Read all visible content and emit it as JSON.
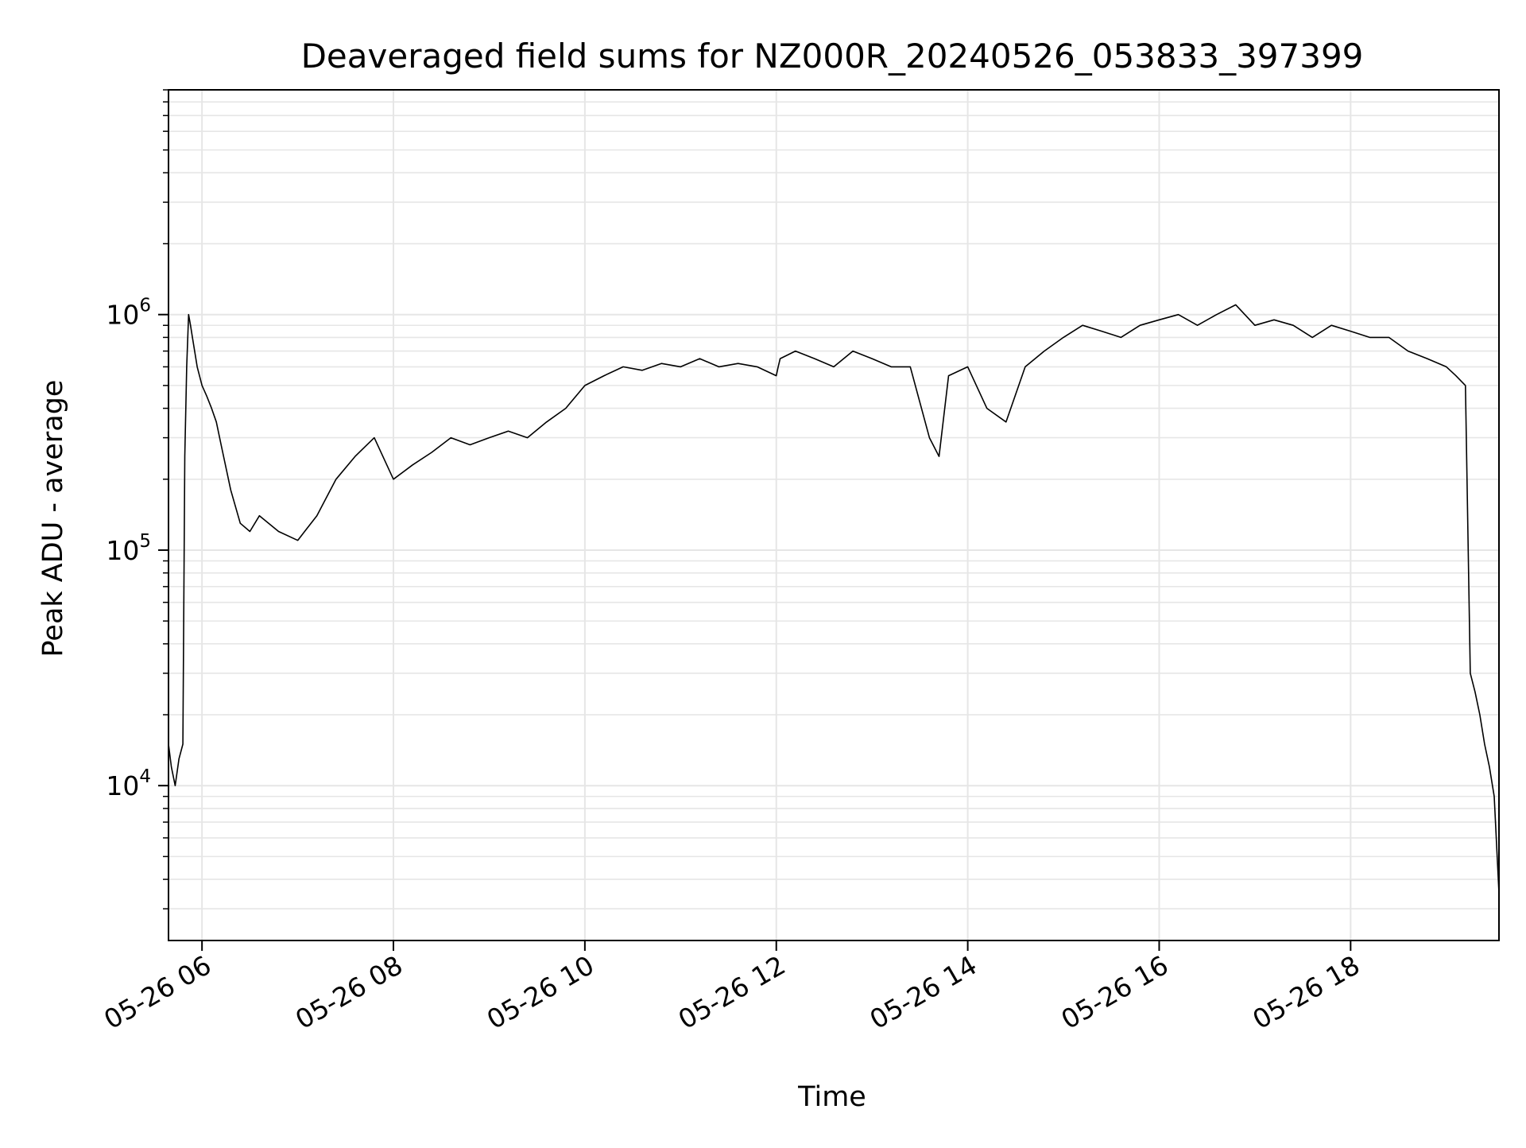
{
  "chart_data": {
    "type": "line",
    "title": "Deaveraged field sums for NZ000R_20240526_053833_397399",
    "xlabel": "Time",
    "ylabel": "Peak ADU - average",
    "yscale": "log",
    "xlim": [
      5.65,
      19.55
    ],
    "ylim": [
      2200,
      9000000
    ],
    "x_ticks": [
      {
        "value": 6,
        "label": "05-26 06"
      },
      {
        "value": 8,
        "label": "05-26 08"
      },
      {
        "value": 10,
        "label": "05-26 10"
      },
      {
        "value": 12,
        "label": "05-26 12"
      },
      {
        "value": 14,
        "label": "05-26 14"
      },
      {
        "value": 16,
        "label": "05-26 16"
      },
      {
        "value": 18,
        "label": "05-26 18"
      }
    ],
    "y_ticks": [
      {
        "value": 10000,
        "base": "10",
        "exp": "4"
      },
      {
        "value": 100000,
        "base": "10",
        "exp": "5"
      },
      {
        "value": 1000000,
        "base": "10",
        "exp": "6"
      }
    ],
    "grid": true,
    "line_color": "#000000",
    "grid_color": "#e6e6e6",
    "series": [
      {
        "x": [
          5.65,
          5.68,
          5.72,
          5.76,
          5.8,
          5.82,
          5.84,
          5.86,
          5.88,
          5.9,
          5.95,
          6.0,
          6.05,
          6.1,
          6.15,
          6.2,
          6.3,
          6.4,
          6.5,
          6.6,
          6.8,
          7.0,
          7.2,
          7.4,
          7.6,
          7.8,
          8.0,
          8.2,
          8.4,
          8.6,
          8.8,
          9.0,
          9.2,
          9.4,
          9.6,
          9.8,
          10.0,
          10.2,
          10.4,
          10.6,
          10.8,
          11.0,
          11.2,
          11.4,
          11.6,
          11.8,
          12.0,
          12.02,
          12.04,
          12.2,
          12.4,
          12.6,
          12.8,
          13.0,
          13.2,
          13.4,
          13.6,
          13.7,
          13.8,
          14.0,
          14.2,
          14.4,
          14.6,
          14.8,
          15.0,
          15.2,
          15.4,
          15.6,
          15.8,
          16.0,
          16.2,
          16.4,
          16.6,
          16.8,
          17.0,
          17.2,
          17.4,
          17.6,
          17.8,
          18.0,
          18.2,
          18.4,
          18.6,
          18.8,
          19.0,
          19.1,
          19.2,
          19.25,
          19.3,
          19.35,
          19.4,
          19.45,
          19.5,
          19.55
        ],
        "y": [
          15000,
          12000,
          10000,
          13000,
          15000,
          250000,
          600000,
          1000000,
          900000,
          800000,
          600000,
          500000,
          450000,
          400000,
          350000,
          280000,
          180000,
          130000,
          120000,
          140000,
          120000,
          110000,
          140000,
          200000,
          250000,
          300000,
          200000,
          230000,
          260000,
          300000,
          280000,
          300000,
          320000,
          300000,
          350000,
          400000,
          500000,
          550000,
          600000,
          580000,
          620000,
          600000,
          650000,
          600000,
          620000,
          600000,
          550000,
          600000,
          650000,
          700000,
          650000,
          600000,
          700000,
          650000,
          600000,
          600000,
          300000,
          250000,
          550000,
          600000,
          400000,
          350000,
          600000,
          700000,
          800000,
          900000,
          850000,
          800000,
          900000,
          950000,
          1000000,
          900000,
          1000000,
          1100000,
          900000,
          950000,
          900000,
          800000,
          900000,
          850000,
          800000,
          800000,
          700000,
          650000,
          600000,
          550000,
          500000,
          30000,
          25000,
          20000,
          15000,
          12000,
          9000,
          3500
        ]
      }
    ]
  }
}
